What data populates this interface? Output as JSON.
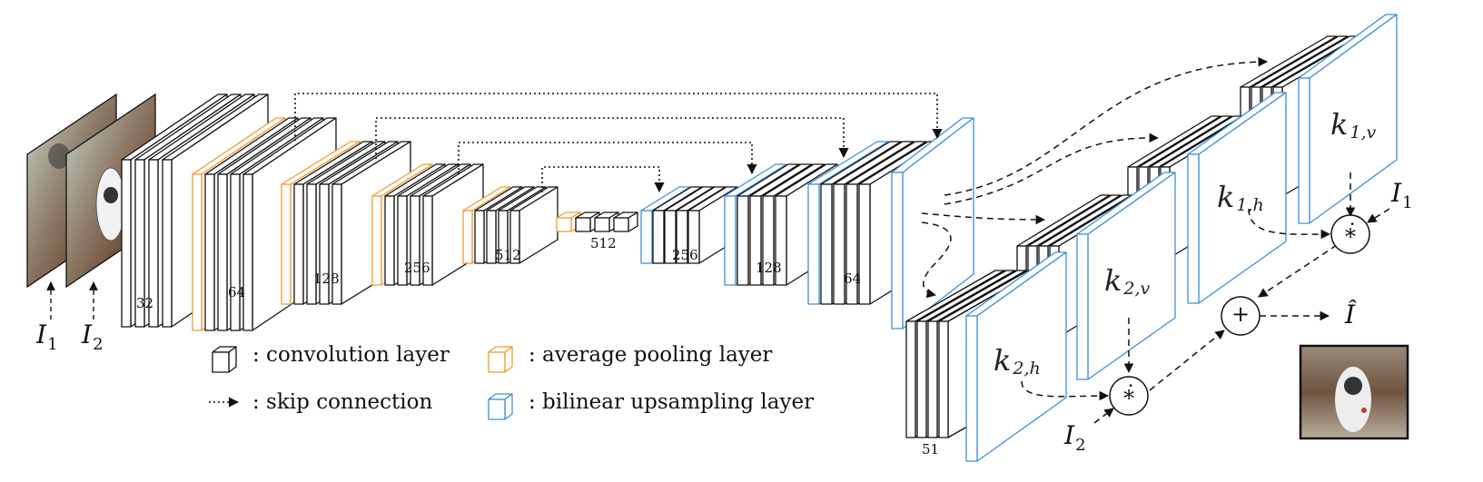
{
  "colors": {
    "conv": "#111111",
    "pool": "#f39a2e",
    "upsample": "#3d8fdd",
    "skip": "#111111"
  },
  "encoder_channels": [
    "32",
    "64",
    "128",
    "256",
    "512",
    "512"
  ],
  "decoder_channels": [
    "256",
    "128",
    "64"
  ],
  "kernel_branch_channels": "51",
  "inputs": {
    "i1": {
      "base": "I",
      "sub": "1"
    },
    "i2": {
      "base": "I",
      "sub": "2"
    }
  },
  "kernels": {
    "k1v": {
      "base": "k",
      "sub": "1,v"
    },
    "k1h": {
      "base": "k",
      "sub": "1,h"
    },
    "k2v": {
      "base": "k",
      "sub": "2,v"
    },
    "k2h": {
      "base": "k",
      "sub": "2,h"
    }
  },
  "operators": {
    "conv_op": "∗̇",
    "sum_op": "+"
  },
  "output": {
    "label": "Î"
  },
  "legend": {
    "conv": ": convolution layer",
    "skip": ": skip connection",
    "pool": ": average pooling layer",
    "upsample": ": bilinear upsampling layer"
  }
}
